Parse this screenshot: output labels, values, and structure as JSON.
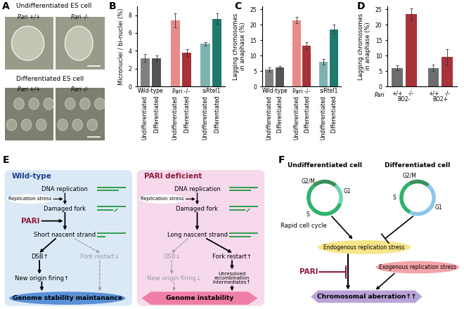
{
  "panel_labels": [
    "A",
    "B",
    "C",
    "D",
    "E",
    "F"
  ],
  "A": {
    "rows": [
      {
        "title": "Undifferentiated ES cell",
        "images": [
          "Pari +/+",
          "Pari -/-"
        ]
      },
      {
        "title": "Differentiated ES cell",
        "images": [
          "Pari +/+",
          "Pari -/-"
        ]
      }
    ]
  },
  "chart_data": [
    {
      "type": "bar",
      "ylabel": "Micronuclei / bi-nuclei (%)",
      "groups": [
        "Wild-type",
        "Pari -/-",
        "siRtel1"
      ],
      "categories": [
        "Undifferentiated",
        "Differentiated",
        "Undifferentiated",
        "Differentiated",
        "Undifferentiated",
        "Differentiated"
      ],
      "values": [
        3.2,
        3.2,
        7.4,
        3.8,
        4.8,
        7.6
      ],
      "errors": [
        0.4,
        0.3,
        0.8,
        0.4,
        0.2,
        0.6
      ],
      "colors": [
        "#808080",
        "#555555",
        "#e88a8a",
        "#a8323a",
        "#7fb3b0",
        "#1f7a6e"
      ],
      "ylim": [
        0,
        9
      ],
      "yticks": [
        0,
        2,
        4,
        6,
        8
      ]
    },
    {
      "type": "bar",
      "ylabel": "Lagging chromosomes\nin anaphase (%)",
      "groups": [
        "Wild-type",
        "Pari -/-",
        "siRtel1"
      ],
      "categories": [
        "Undifferentiated",
        "Differentiated",
        "Undifferentiated",
        "Differentiated",
        "Undifferentiated",
        "Differentiated"
      ],
      "values": [
        5.5,
        6.2,
        21.5,
        13.2,
        8.0,
        18.5
      ],
      "errors": [
        0.6,
        0.5,
        1.0,
        1.2,
        0.8,
        1.5
      ],
      "colors": [
        "#808080",
        "#555555",
        "#e88a8a",
        "#a8323a",
        "#7fb3b0",
        "#1f7a6e"
      ],
      "ylim": [
        0,
        26
      ],
      "yticks": [
        0,
        5,
        10,
        15,
        20,
        25
      ]
    },
    {
      "type": "bar",
      "ylabel": "Lagging chromosomes\nin anaphase (%)",
      "genotype_label": "Pari",
      "groups": [
        "BO2-",
        "BO2+"
      ],
      "categories": [
        "+/+",
        "-/-",
        "+/+",
        "-/-"
      ],
      "values": [
        6.0,
        23.5,
        6.0,
        9.5
      ],
      "errors": [
        0.8,
        1.8,
        1.0,
        2.5
      ],
      "colors": [
        "#6e6e6e",
        "#a8323a",
        "#6e6e6e",
        "#a8323a"
      ],
      "ylim": [
        0,
        26
      ],
      "yticks": [
        0,
        5,
        10,
        15,
        20,
        25
      ]
    }
  ],
  "E": {
    "panels": [
      {
        "title": "Wild-type",
        "dna_replication": "DNA replication",
        "stress": "Replication stress",
        "damaged_fork": "Damaged fork",
        "pari": "PARI",
        "nascent": "Short nascent strand",
        "dsb": "DSB↑",
        "fork_restart": "Fork restart↓",
        "origin_firing": "New origin firing↑",
        "outcome": "Genome stability maintanance"
      },
      {
        "title": "PARI deficient",
        "dna_replication": "DNA replication",
        "stress": "Replication stress",
        "damaged_fork": "Damaged fork",
        "nascent": "Long nascent strand",
        "dsb": "DSB↓",
        "fork_restart": "Fork restart↑",
        "origin_firing": "New origin firing↓",
        "intermediates": "Unresolved recombination intermediates↑",
        "outcome": "Genome instability"
      }
    ]
  },
  "F": {
    "undifferentiated": "Undifferentiated cell",
    "differentiated": "Differentiated cell",
    "phases": [
      "G1",
      "S",
      "G2/M"
    ],
    "rapid": "Rapid cell cycle",
    "endogenous": "Endogenous replication stress",
    "exogenous": "Exogenous replication stress",
    "pari": "PARI",
    "outcome": "Chromosomal aberration↑↑"
  }
}
